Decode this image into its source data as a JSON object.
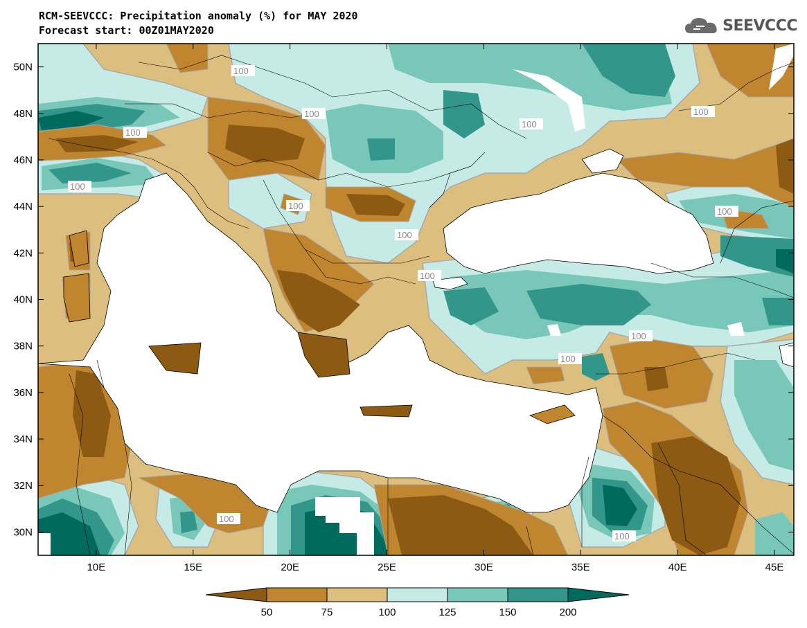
{
  "header": {
    "title": "RCM-SEEVCCC: Precipitation anomaly (%) for MAY 2020",
    "subtitle": "Forecast start: 00Z01MAY2020"
  },
  "logo": {
    "text": "SEEVCCC",
    "icon": "cloud-logo-icon"
  },
  "map": {
    "variable": "Precipitation anomaly (%)",
    "lon_range": [
      7,
      46
    ],
    "lat_range": [
      29,
      51
    ],
    "lon_ticks": [
      "10E",
      "15E",
      "20E",
      "25E",
      "30E",
      "35E",
      "40E",
      "45E"
    ],
    "lat_ticks": [
      "50N",
      "48N",
      "46N",
      "44N",
      "42N",
      "40N",
      "38N",
      "36N",
      "34N",
      "32N",
      "30N"
    ],
    "contour_labels": [
      "100",
      "100",
      "100",
      "100",
      "100",
      "100",
      "100",
      "100",
      "100",
      "100",
      "100",
      "100",
      "100",
      "100"
    ]
  },
  "colorbar": {
    "levels": [
      "50",
      "75",
      "100",
      "125",
      "150",
      "200"
    ],
    "colors": [
      "#8c5a13",
      "#c0852f",
      "#dcbf7e",
      "#c6ebe6",
      "#79c7b9",
      "#33968b",
      "#006a5e"
    ]
  },
  "colors": {
    "sea": "#ffffff",
    "dry_strong": "#8c5a13",
    "dry": "#c0852f",
    "dry_light": "#dcbf7e",
    "wet_light": "#c6ebe6",
    "wet": "#79c7b9",
    "wet_strong": "#33968b",
    "wet_extreme": "#006a5e"
  }
}
